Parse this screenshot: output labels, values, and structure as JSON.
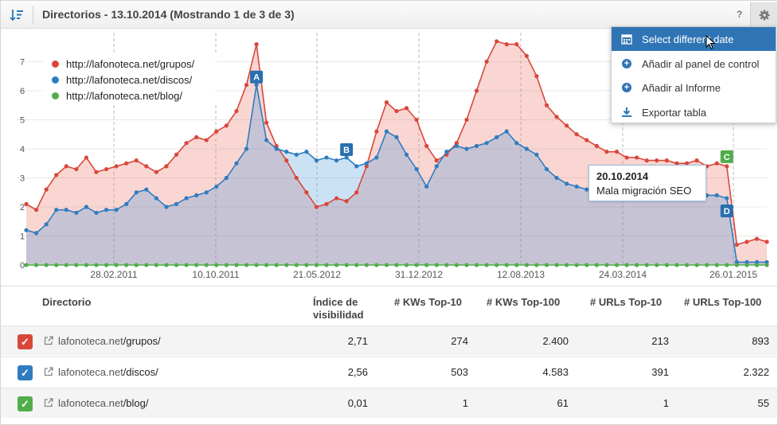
{
  "header": {
    "title": "Directorios - 13.10.2014 (Mostrando 1 de 3 de 3)",
    "help_label": "?"
  },
  "chart_data": {
    "type": "area",
    "y_ticks": [
      "0",
      "1",
      "2",
      "3",
      "4",
      "5",
      "6",
      "7"
    ],
    "x_ticks": [
      "28.02.2011",
      "10.10.2011",
      "21.05.2012",
      "31.12.2012",
      "12.08.2013",
      "24.03.2014",
      "26.01.2015"
    ],
    "ylim": [
      0,
      8
    ],
    "grid": true,
    "legend_placement": "top-left",
    "series": [
      {
        "name": "http://lafonoteca.net/grupos/",
        "color": "#d9473b",
        "values": [
          2.1,
          1.9,
          2.6,
          3.1,
          3.4,
          3.3,
          3.7,
          3.2,
          3.3,
          3.4,
          3.5,
          3.6,
          3.4,
          3.2,
          3.4,
          3.8,
          4.2,
          4.4,
          4.3,
          4.6,
          4.8,
          5.3,
          6.2,
          7.6,
          4.9,
          4.1,
          3.6,
          3.0,
          2.5,
          2.0,
          2.1,
          2.3,
          2.2,
          2.5,
          3.4,
          4.6,
          5.6,
          5.3,
          5.4,
          5.0,
          4.1,
          3.6,
          3.8,
          4.2,
          5.0,
          6.0,
          7.0,
          7.7,
          7.6,
          7.6,
          7.2,
          6.5,
          5.5,
          5.1,
          4.8,
          4.5,
          4.3,
          4.1,
          3.9,
          3.9,
          3.7,
          3.7,
          3.6,
          3.6,
          3.6,
          3.5,
          3.5,
          3.6,
          3.4,
          3.5,
          3.4,
          0.7,
          0.8,
          0.9,
          0.8
        ]
      },
      {
        "name": "http://lafonoteca.net/discos/",
        "color": "#2f7cc1",
        "values": [
          1.2,
          1.1,
          1.4,
          1.9,
          1.9,
          1.8,
          2.0,
          1.8,
          1.9,
          1.9,
          2.1,
          2.5,
          2.6,
          2.3,
          2.0,
          2.1,
          2.3,
          2.4,
          2.5,
          2.7,
          3.0,
          3.5,
          4.0,
          6.2,
          4.3,
          4.0,
          3.9,
          3.8,
          3.9,
          3.6,
          3.7,
          3.6,
          3.7,
          3.4,
          3.5,
          3.7,
          4.6,
          4.4,
          3.8,
          3.3,
          2.7,
          3.4,
          3.9,
          4.1,
          4.0,
          4.1,
          4.2,
          4.4,
          4.6,
          4.2,
          4.0,
          3.8,
          3.3,
          3.0,
          2.8,
          2.7,
          2.6,
          2.6,
          2.6,
          2.7,
          2.6,
          2.5,
          2.6,
          2.6,
          2.5,
          2.6,
          2.5,
          2.6,
          2.4,
          2.4,
          2.3,
          0.1,
          0.1,
          0.1,
          0.1
        ]
      },
      {
        "name": "http://lafonoteca.net/blog/",
        "color": "#4fae4a",
        "values": [
          0,
          0,
          0,
          0,
          0,
          0,
          0,
          0,
          0,
          0,
          0,
          0,
          0,
          0,
          0,
          0,
          0,
          0,
          0,
          0,
          0,
          0,
          0,
          0,
          0,
          0,
          0,
          0,
          0,
          0,
          0,
          0,
          0,
          0,
          0,
          0,
          0,
          0,
          0,
          0,
          0,
          0,
          0,
          0,
          0,
          0,
          0,
          0,
          0,
          0,
          0,
          0,
          0,
          0,
          0,
          0,
          0,
          0,
          0,
          0,
          0,
          0,
          0,
          0,
          0,
          0,
          0,
          0,
          0,
          0,
          0,
          0,
          0,
          0,
          0
        ]
      }
    ],
    "markers": [
      {
        "label": "A",
        "color": "#2a6fae",
        "index": 23
      },
      {
        "label": "B",
        "color": "#2a6fae",
        "index": 32
      },
      {
        "label": "C",
        "color": "#4fae4a",
        "index": 70
      },
      {
        "label": "D",
        "color": "#2a6fae",
        "index": 70
      }
    ]
  },
  "tooltip": {
    "date": "20.10.2014",
    "text": "Mala migración SEO"
  },
  "menu": {
    "items": [
      {
        "label": "Select different date",
        "icon": "calendar-icon"
      },
      {
        "label": "Añadir al panel de control",
        "icon": "plus-icon"
      },
      {
        "label": "Añadir al Informe",
        "icon": "plus-icon"
      },
      {
        "label": "Exportar tabla",
        "icon": "download-icon"
      }
    ]
  },
  "table": {
    "headers": {
      "directory": "Directorio",
      "visibility_1": "Índice de",
      "visibility_2": "visibilidad",
      "kw10": "# KWs Top-10",
      "kw100": "# KWs Top-100",
      "url10": "# URLs Top-10",
      "url100": "# URLs Top-100"
    },
    "rows": [
      {
        "domain": "lafonoteca.net",
        "path": "/grupos/",
        "color": "#d9473b",
        "visibility": "2,71",
        "kw10": "274",
        "kw100": "2.400",
        "url10": "213",
        "url100": "893"
      },
      {
        "domain": "lafonoteca.net",
        "path": "/discos/",
        "color": "#2f7cc1",
        "visibility": "2,56",
        "kw10": "503",
        "kw100": "4.583",
        "url10": "391",
        "url100": "2.322"
      },
      {
        "domain": "lafonoteca.net",
        "path": "/blog/",
        "color": "#4fae4a",
        "visibility": "0,01",
        "kw10": "1",
        "kw100": "61",
        "url10": "1",
        "url100": "55"
      }
    ]
  }
}
